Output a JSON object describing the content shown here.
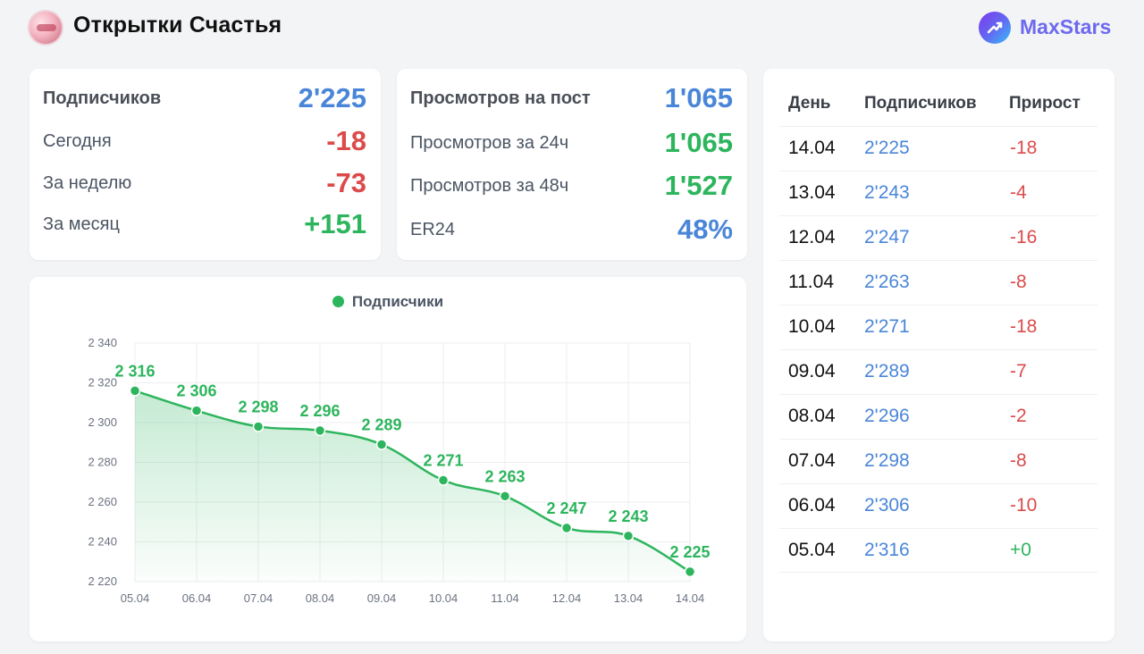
{
  "header": {
    "title": "Открытки Счастья",
    "brand": "MaxStars",
    "avatar_icon": "channel-avatar-icon",
    "brand_icon": "maxstars-logo-icon"
  },
  "subs_card": {
    "rows": [
      {
        "label": "Подписчиков",
        "value": "2'225",
        "color": "blue"
      },
      {
        "label": "Сегодня",
        "value": "-18",
        "color": "red"
      },
      {
        "label": "За неделю",
        "value": "-73",
        "color": "red"
      },
      {
        "label": "За месяц",
        "value": "+151",
        "color": "green"
      }
    ]
  },
  "views_card": {
    "rows": [
      {
        "label": "Просмотров на пост",
        "value": "1'065",
        "color": "blue"
      },
      {
        "label": "Просмотров за 24ч",
        "value": "1'065",
        "color": "green"
      },
      {
        "label": "Просмотров за 48ч",
        "value": "1'527",
        "color": "green"
      },
      {
        "label": "ER24",
        "value": "48%",
        "color": "blue"
      }
    ]
  },
  "table": {
    "headers": [
      "День",
      "Подписчиков",
      "Прирост"
    ],
    "rows": [
      {
        "day": "14.04",
        "subs": "2'225",
        "growth": "-18"
      },
      {
        "day": "13.04",
        "subs": "2'243",
        "growth": "-4"
      },
      {
        "day": "12.04",
        "subs": "2'247",
        "growth": "-16"
      },
      {
        "day": "11.04",
        "subs": "2'263",
        "growth": "-8"
      },
      {
        "day": "10.04",
        "subs": "2'271",
        "growth": "-18"
      },
      {
        "day": "09.04",
        "subs": "2'289",
        "growth": "-7"
      },
      {
        "day": "08.04",
        "subs": "2'296",
        "growth": "-2"
      },
      {
        "day": "07.04",
        "subs": "2'298",
        "growth": "-8"
      },
      {
        "day": "06.04",
        "subs": "2'306",
        "growth": "-10"
      },
      {
        "day": "05.04",
        "subs": "2'316",
        "growth": "+0"
      }
    ]
  },
  "colors": {
    "blue": "#4a86d8",
    "red": "#dc4a4a",
    "green": "#2db55d"
  },
  "chart_data": {
    "type": "line",
    "x": [
      "05.04",
      "06.04",
      "07.04",
      "08.04",
      "09.04",
      "10.04",
      "11.04",
      "12.04",
      "13.04",
      "14.04"
    ],
    "series": [
      {
        "name": "Подписчики",
        "values": [
          2316,
          2306,
          2298,
          2296,
          2289,
          2271,
          2263,
          2247,
          2243,
          2225
        ],
        "labels": [
          "2 316",
          "2 306",
          "2 298",
          "2 296",
          "2 289",
          "2 271",
          "2 263",
          "2 247",
          "2 243",
          "2 225"
        ]
      }
    ],
    "yticks": [
      "2 220",
      "2 240",
      "2 260",
      "2 280",
      "2 300",
      "2 320",
      "2 340"
    ],
    "ylim": [
      2220,
      2340
    ],
    "grid": true,
    "area_fill": true,
    "legend_position": "top-center"
  }
}
